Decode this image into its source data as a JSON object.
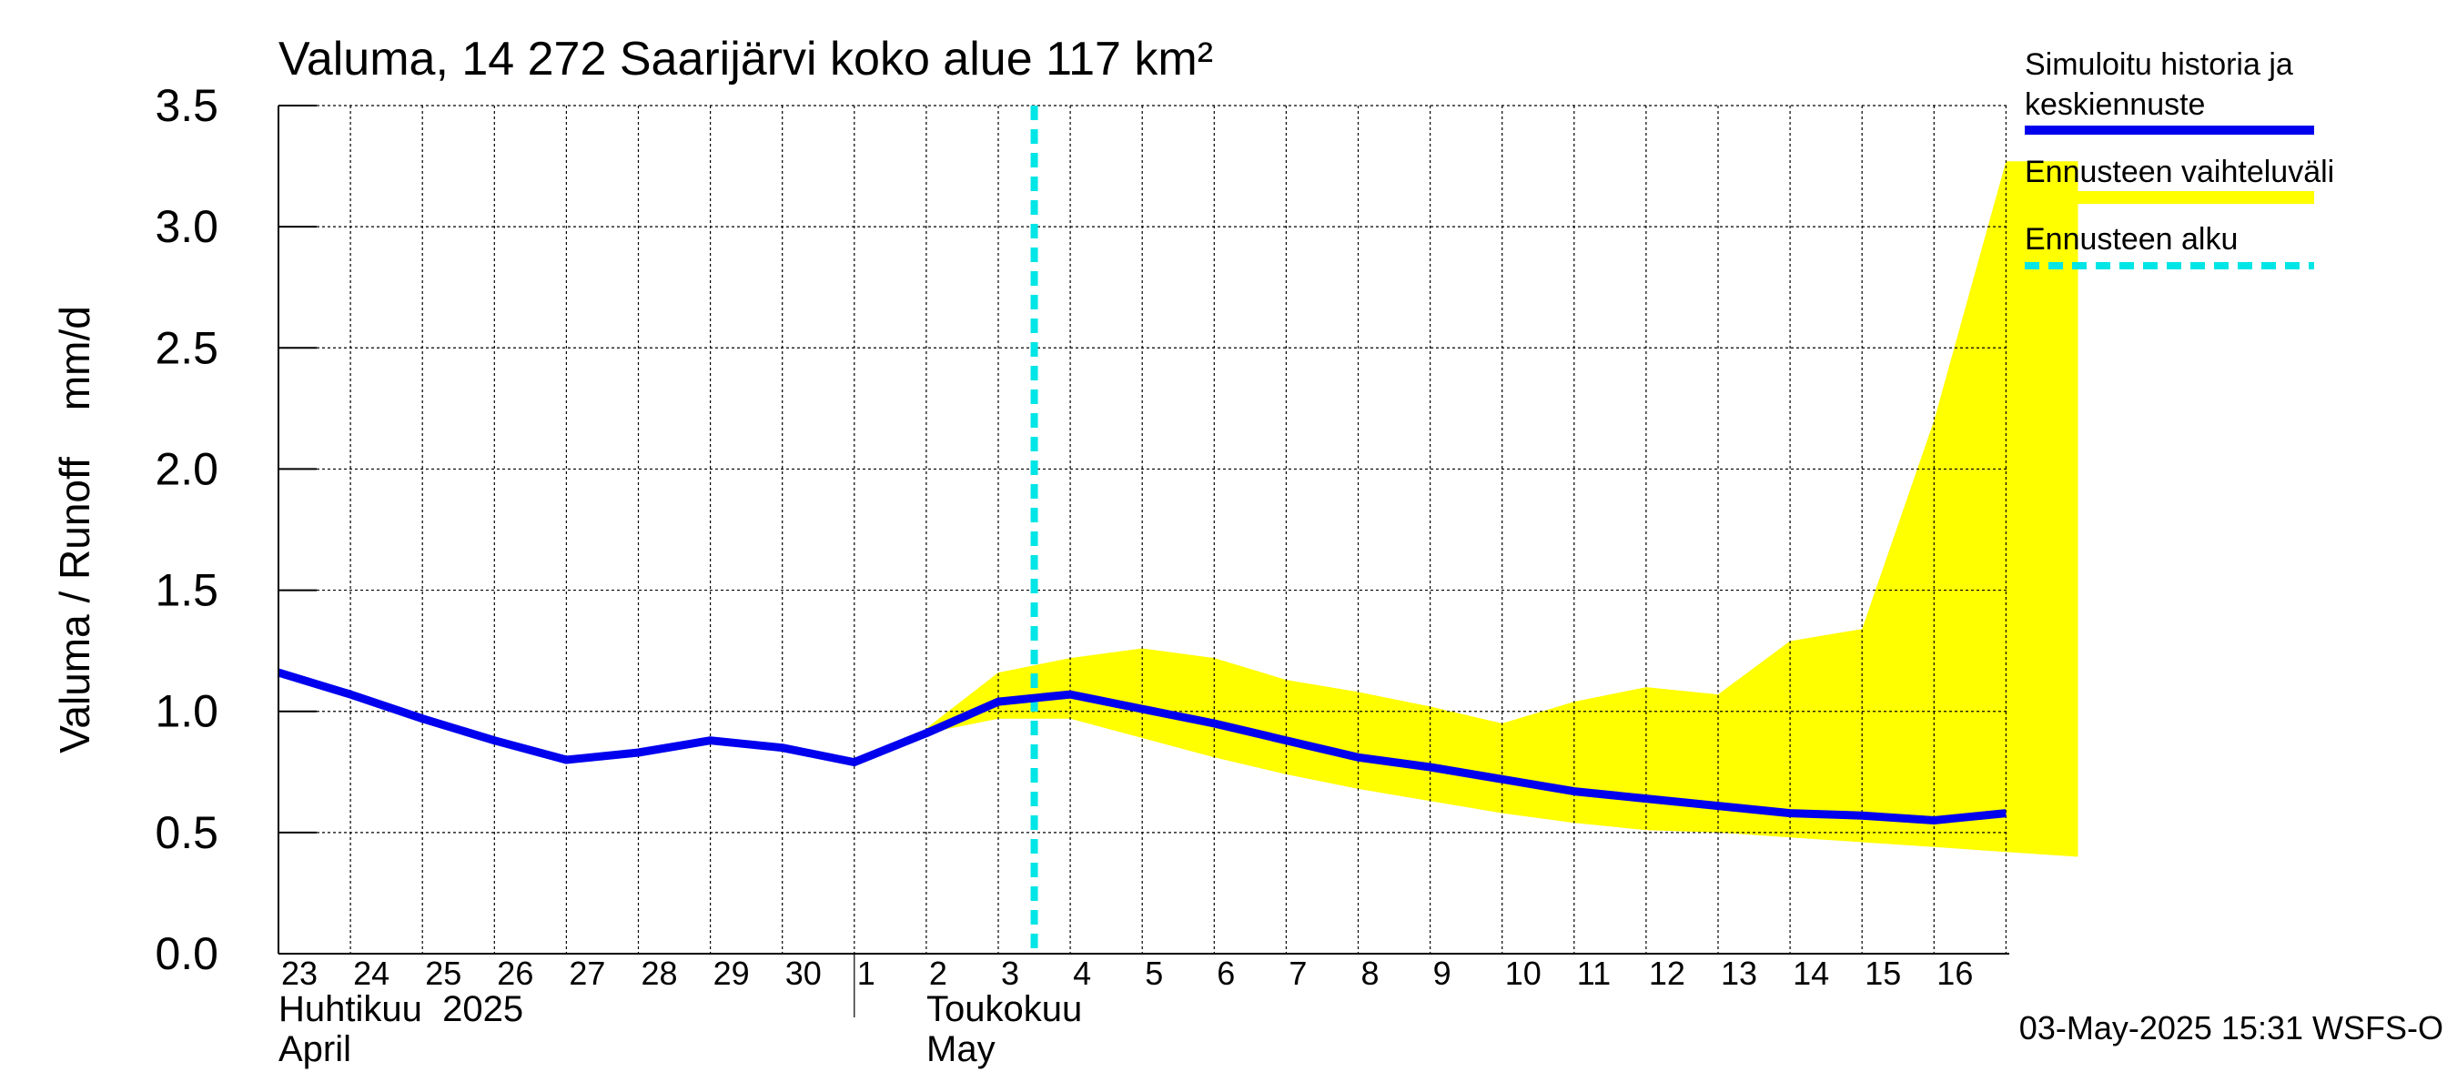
{
  "chart_data": {
    "type": "line",
    "title": "Valuma, 14 272 Saarijärvi koko alue 117 km²",
    "ylabel": "Valuma / Runoff    mm/d",
    "ylim": [
      0,
      3.5
    ],
    "y_ticks": [
      0.0,
      0.5,
      1.0,
      1.5,
      2.0,
      2.5,
      3.0,
      3.5
    ],
    "y_tick_labels": [
      "0.0",
      "0.5",
      "1.0",
      "1.5",
      "2.0",
      "2.5",
      "3.0",
      "3.5"
    ],
    "grid": true,
    "legend_position": "right",
    "x_day_labels": [
      "23",
      "24",
      "25",
      "26",
      "27",
      "28",
      "29",
      "30",
      "1",
      "2",
      "3",
      "4",
      "5",
      "6",
      "7",
      "8",
      "9",
      "10",
      "11",
      "12",
      "13",
      "14",
      "15",
      "16"
    ],
    "month_labels": [
      {
        "fi": "Huhtikuu  2025",
        "en": "April"
      },
      {
        "fi": "Toukokuu",
        "en": "May"
      }
    ],
    "forecast_start": "2025-05-02",
    "series": [
      {
        "name": "Simuloitu historia ja keskiennuste",
        "color": "#0000ee",
        "x": [
          "2025-04-22",
          "2025-04-23",
          "2025-04-24",
          "2025-04-25",
          "2025-04-26",
          "2025-04-27",
          "2025-04-28",
          "2025-04-29",
          "2025-04-30",
          "2025-05-01",
          "2025-05-02",
          "2025-05-03",
          "2025-05-04",
          "2025-05-05",
          "2025-05-06",
          "2025-05-07",
          "2025-05-08",
          "2025-05-09",
          "2025-05-10",
          "2025-05-11",
          "2025-05-12",
          "2025-05-13",
          "2025-05-14",
          "2025-05-15",
          "2025-05-16"
        ],
        "values": [
          1.16,
          1.07,
          0.97,
          0.88,
          0.8,
          0.83,
          0.88,
          0.85,
          0.79,
          0.91,
          1.04,
          1.07,
          1.01,
          0.95,
          0.88,
          0.81,
          0.77,
          0.72,
          0.67,
          0.64,
          0.61,
          0.58,
          0.57,
          0.55,
          0.58
        ]
      },
      {
        "name": "Ennusteen vaihteluväli",
        "color": "#ffff00",
        "x": [
          "2025-05-01",
          "2025-05-02",
          "2025-05-03",
          "2025-05-04",
          "2025-05-05",
          "2025-05-06",
          "2025-05-07",
          "2025-05-08",
          "2025-05-09",
          "2025-05-10",
          "2025-05-11",
          "2025-05-12",
          "2025-05-13",
          "2025-05-14",
          "2025-05-15",
          "2025-05-16",
          "2025-05-17"
        ],
        "upper": [
          0.93,
          1.16,
          1.22,
          1.26,
          1.22,
          1.13,
          1.08,
          1.02,
          0.95,
          1.04,
          1.1,
          1.07,
          1.29,
          1.34,
          2.2,
          3.27,
          3.27
        ],
        "lower": [
          0.91,
          0.97,
          0.97,
          0.89,
          0.81,
          0.74,
          0.68,
          0.63,
          0.58,
          0.54,
          0.51,
          0.5,
          0.48,
          0.46,
          0.44,
          0.42,
          0.4
        ]
      },
      {
        "name": "Ennusteen alku",
        "color": "#00e5e5"
      }
    ],
    "footer": "03-May-2025 15:31 WSFS-O"
  }
}
